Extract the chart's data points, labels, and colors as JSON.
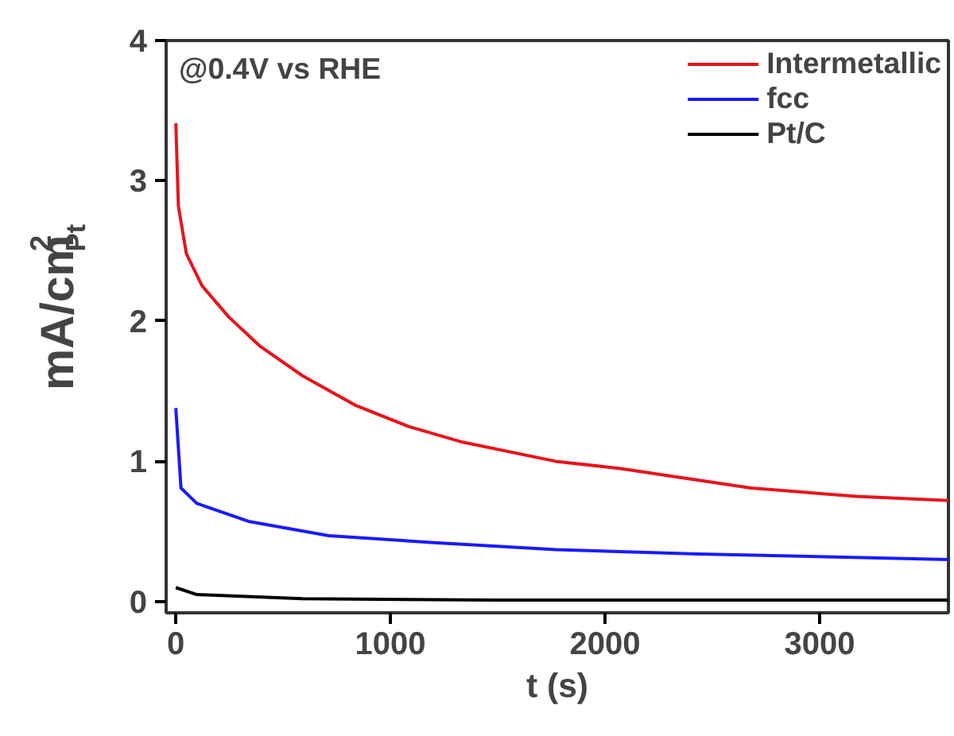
{
  "chart_data": {
    "type": "line",
    "xlabel": "t (s)",
    "ylabel": "mA/cm$^{2}$$_{Pt}$",
    "annotations": [
      "@0.4V vs RHE"
    ],
    "xlim": [
      -45,
      3600
    ],
    "ylim": [
      -0.08,
      4
    ],
    "xticks": [
      0,
      1000,
      2000,
      3000
    ],
    "yticks": [
      0,
      1,
      2,
      3,
      4
    ],
    "grid": false,
    "legend": "top right",
    "line_style": "solid",
    "marker": "none",
    "series": [
      {
        "name": "Intermetallic",
        "color": "#e8141c",
        "x": [
          0,
          12,
          49,
          123,
          246,
          393,
          590,
          836,
          1082,
          1327,
          1770,
          2065,
          2680,
          3171,
          3600
        ],
        "values": [
          3.41,
          2.82,
          2.48,
          2.25,
          2.03,
          1.82,
          1.61,
          1.4,
          1.25,
          1.14,
          1.0,
          0.95,
          0.81,
          0.75,
          0.72
        ]
      },
      {
        "name": "fcc",
        "color": "#1a1aff",
        "x": [
          0,
          24,
          98,
          344,
          713,
          1204,
          1770,
          2434,
          3600
        ],
        "values": [
          1.38,
          0.81,
          0.7,
          0.57,
          0.47,
          0.42,
          0.37,
          0.34,
          0.3
        ]
      },
      {
        "name": "Pt/C",
        "color": "#000000",
        "x": [
          0,
          98,
          590,
          1500,
          3600
        ],
        "values": [
          0.1,
          0.05,
          0.02,
          0.01,
          0.01
        ]
      }
    ]
  }
}
